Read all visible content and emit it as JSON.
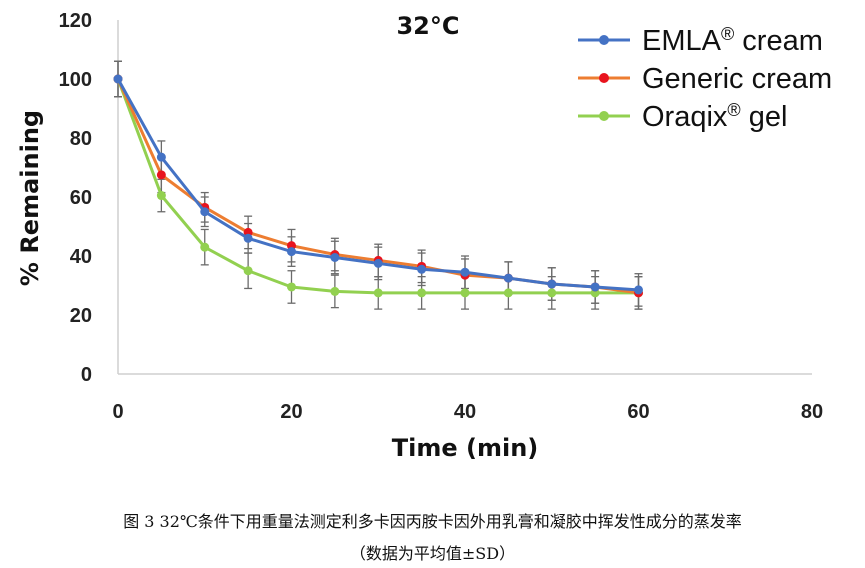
{
  "chart_data": {
    "type": "line",
    "annotation": "32°C",
    "xlabel": "Time (min)",
    "ylabel": "% Remaining",
    "xlim": [
      0,
      80
    ],
    "ylim": [
      0,
      120
    ],
    "xticks": [
      "0",
      "20",
      "40",
      "60",
      "80"
    ],
    "yticks": [
      "0",
      "20",
      "40",
      "60",
      "80",
      "100",
      "120"
    ],
    "grid": false,
    "legend_position": "top-right",
    "x": [
      0,
      5,
      10,
      15,
      20,
      25,
      30,
      35,
      40,
      45,
      50,
      55,
      60
    ],
    "series": [
      {
        "name": "EMLA",
        "name_suffix": "® cream",
        "color": "#4472C4",
        "values": [
          100,
          73.5,
          55,
          46,
          41.5,
          39.5,
          37.5,
          35.5,
          34.5,
          32.5,
          30.5,
          29.5,
          28.5
        ],
        "errors": [
          6,
          5.5,
          5,
          5,
          5,
          5.5,
          5.5,
          5.5,
          5.5,
          5.5,
          5.5,
          5.5,
          5.5
        ]
      },
      {
        "name": "Generic cream",
        "name_suffix": "",
        "color": "#ED7D31",
        "marker_color": "#E8141E",
        "values": [
          100,
          67.5,
          56.5,
          48,
          43.5,
          40.5,
          38.5,
          36.5,
          33.5,
          32.5,
          30.5,
          29.5,
          27.5
        ],
        "errors": [
          6,
          6,
          5,
          5.5,
          5.5,
          5.5,
          5.5,
          5.5,
          5.5,
          5.5,
          5.5,
          5.5,
          5.5
        ]
      },
      {
        "name": "Oraqix",
        "name_suffix": "® gel",
        "color": "#92D050",
        "values": [
          100,
          60.5,
          43,
          35,
          29.5,
          28,
          27.5,
          27.5,
          27.5,
          27.5,
          27.5,
          27.5,
          27.5
        ],
        "errors": [
          6,
          5.5,
          6,
          6,
          5.5,
          5.5,
          5.5,
          5.5,
          5.5,
          5.5,
          5.5,
          5.5,
          5.5
        ]
      }
    ]
  },
  "caption": {
    "line1": "图 3 32℃条件下用重量法测定利多卡因丙胺卡因外用乳膏和凝胶中挥发性成分的蒸发率",
    "line2": "（数据为平均值±SD）"
  }
}
